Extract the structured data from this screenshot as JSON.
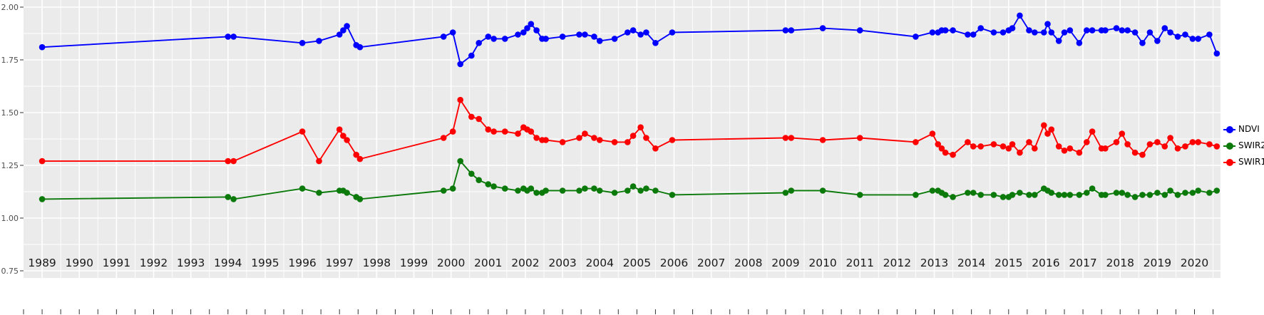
{
  "figure": {
    "background": "#ffffff",
    "panel_background": "#ebebeb",
    "grid_color": "#ffffff",
    "y_axis_text_color": "#4d4d4d",
    "x_axis_text_color": "#1a1a1a",
    "tick_mark_color": "#333333"
  },
  "legend": {
    "position": "right"
  },
  "chart_data": {
    "type": "line",
    "title": "",
    "xlabel": "",
    "ylabel": "",
    "grid": true,
    "xlim": [
      1988.5,
      2020.7
    ],
    "ylim": [
      0.75,
      2.0
    ],
    "x_major_ticks": [
      1989,
      1990,
      1991,
      1992,
      1993,
      1994,
      1995,
      1996,
      1997,
      1998,
      1999,
      2000,
      2001,
      2002,
      2003,
      2004,
      2005,
      2006,
      2007,
      2008,
      2009,
      2010,
      2011,
      2012,
      2013,
      2014,
      2015,
      2016,
      2017,
      2018,
      2019,
      2020
    ],
    "y_major_ticks": [
      0.75,
      1.0,
      1.25,
      1.5,
      1.75,
      2.0
    ],
    "y_tick_labels": [
      "0.75",
      "1.00",
      "1.25",
      "1.50",
      "1.75",
      "2.00"
    ],
    "y_minor_ticks": [
      0.875,
      1.125,
      1.375,
      1.625,
      1.875
    ],
    "x": [
      1989.0,
      1994.0,
      1994.15,
      1996.0,
      1996.45,
      1997.0,
      1997.1,
      1997.2,
      1997.45,
      1997.55,
      1999.8,
      2000.05,
      2000.25,
      2000.55,
      2000.75,
      2001.0,
      2001.15,
      2001.45,
      2001.8,
      2001.95,
      2002.05,
      2002.15,
      2002.3,
      2002.45,
      2002.55,
      2003.0,
      2003.45,
      2003.6,
      2003.85,
      2004.0,
      2004.4,
      2004.75,
      2004.9,
      2005.1,
      2005.25,
      2005.5,
      2005.95,
      2009.0,
      2009.15,
      2010.0,
      2011.0,
      2012.5,
      2012.95,
      2013.1,
      2013.2,
      2013.3,
      2013.5,
      2013.9,
      2014.05,
      2014.25,
      2014.6,
      2014.85,
      2015.0,
      2015.1,
      2015.3,
      2015.55,
      2015.7,
      2015.95,
      2016.05,
      2016.15,
      2016.35,
      2016.5,
      2016.65,
      2016.9,
      2017.1,
      2017.25,
      2017.5,
      2017.6,
      2017.9,
      2018.05,
      2018.2,
      2018.4,
      2018.6,
      2018.8,
      2019.0,
      2019.2,
      2019.35,
      2019.55,
      2019.75,
      2019.95,
      2020.1,
      2020.4,
      2020.6
    ],
    "series": [
      {
        "name": "NDVI",
        "color": "#0000ff",
        "values": [
          1.81,
          1.86,
          1.86,
          1.83,
          1.84,
          1.87,
          1.89,
          1.91,
          1.82,
          1.81,
          1.86,
          1.88,
          1.73,
          1.77,
          1.83,
          1.86,
          1.85,
          1.85,
          1.87,
          1.88,
          1.9,
          1.92,
          1.89,
          1.85,
          1.85,
          1.86,
          1.87,
          1.87,
          1.86,
          1.84,
          1.85,
          1.88,
          1.89,
          1.87,
          1.88,
          1.83,
          1.88,
          1.89,
          1.89,
          1.9,
          1.89,
          1.86,
          1.88,
          1.88,
          1.89,
          1.89,
          1.89,
          1.87,
          1.87,
          1.9,
          1.88,
          1.88,
          1.89,
          1.9,
          1.96,
          1.89,
          1.88,
          1.88,
          1.92,
          1.88,
          1.84,
          1.88,
          1.89,
          1.83,
          1.89,
          1.89,
          1.89,
          1.89,
          1.9,
          1.89,
          1.89,
          1.88,
          1.83,
          1.88,
          1.84,
          1.9,
          1.88,
          1.86,
          1.87,
          1.85,
          1.85,
          1.87,
          1.78
        ]
      },
      {
        "name": "SWIR2",
        "color": "#0b7a0b",
        "values": [
          1.09,
          1.1,
          1.09,
          1.14,
          1.12,
          1.13,
          1.13,
          1.12,
          1.1,
          1.09,
          1.13,
          1.14,
          1.27,
          1.21,
          1.18,
          1.16,
          1.15,
          1.14,
          1.13,
          1.14,
          1.13,
          1.14,
          1.12,
          1.12,
          1.13,
          1.13,
          1.13,
          1.14,
          1.14,
          1.13,
          1.12,
          1.13,
          1.15,
          1.13,
          1.14,
          1.13,
          1.11,
          1.12,
          1.13,
          1.13,
          1.11,
          1.11,
          1.13,
          1.13,
          1.12,
          1.11,
          1.1,
          1.12,
          1.12,
          1.11,
          1.11,
          1.1,
          1.1,
          1.11,
          1.12,
          1.11,
          1.11,
          1.14,
          1.13,
          1.12,
          1.11,
          1.11,
          1.11,
          1.11,
          1.12,
          1.14,
          1.11,
          1.11,
          1.12,
          1.12,
          1.11,
          1.1,
          1.11,
          1.11,
          1.12,
          1.11,
          1.13,
          1.11,
          1.12,
          1.12,
          1.13,
          1.12,
          1.13
        ]
      },
      {
        "name": "SWIR1",
        "color": "#ff0000",
        "values": [
          1.27,
          1.27,
          1.27,
          1.41,
          1.27,
          1.42,
          1.39,
          1.37,
          1.3,
          1.28,
          1.38,
          1.41,
          1.56,
          1.48,
          1.47,
          1.42,
          1.41,
          1.41,
          1.4,
          1.43,
          1.42,
          1.41,
          1.38,
          1.37,
          1.37,
          1.36,
          1.38,
          1.4,
          1.38,
          1.37,
          1.36,
          1.36,
          1.39,
          1.43,
          1.38,
          1.33,
          1.37,
          1.38,
          1.38,
          1.37,
          1.38,
          1.36,
          1.4,
          1.35,
          1.33,
          1.31,
          1.3,
          1.36,
          1.34,
          1.34,
          1.35,
          1.34,
          1.33,
          1.35,
          1.31,
          1.36,
          1.33,
          1.44,
          1.4,
          1.42,
          1.34,
          1.32,
          1.33,
          1.31,
          1.36,
          1.41,
          1.33,
          1.33,
          1.36,
          1.4,
          1.35,
          1.31,
          1.3,
          1.35,
          1.36,
          1.34,
          1.38,
          1.33,
          1.34,
          1.36,
          1.36,
          1.35,
          1.34
        ]
      }
    ],
    "legend_entries": [
      "NDVI",
      "SWIR2",
      "SWIR1"
    ]
  }
}
